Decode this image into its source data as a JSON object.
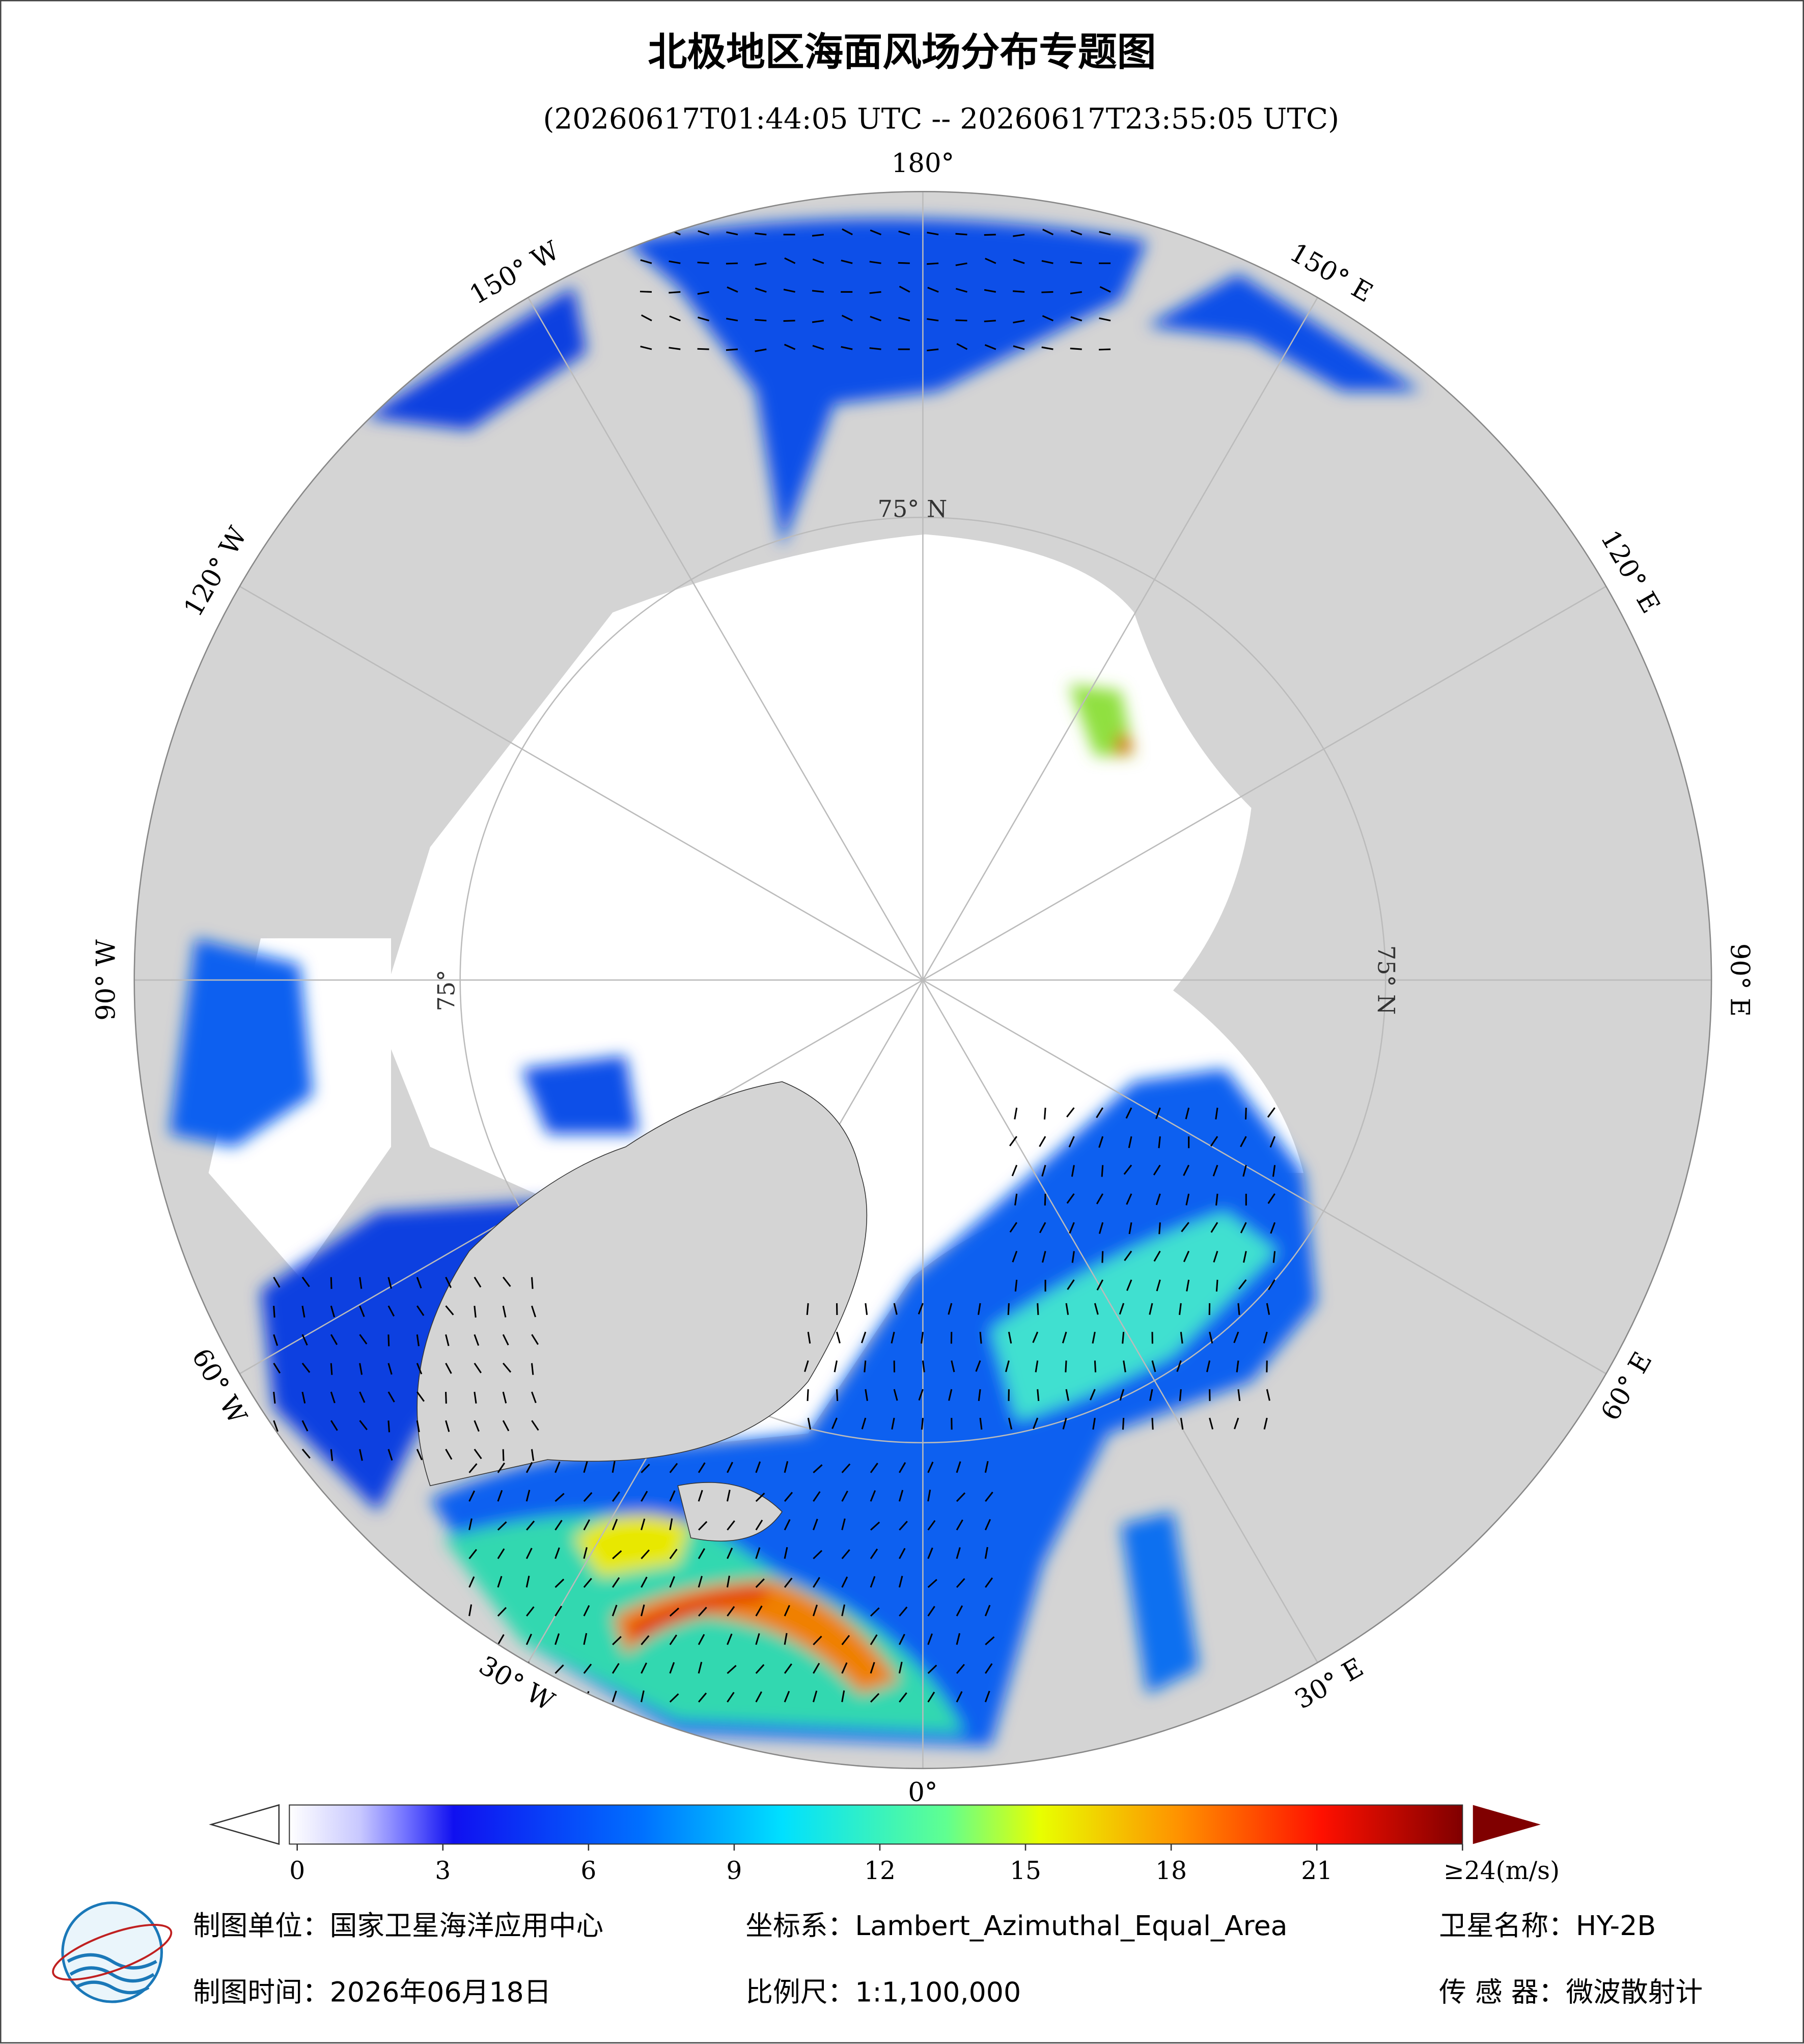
{
  "header": {
    "title": "北极地区海面风场分布专题图",
    "subtitle": "(20260617T01:44:05 UTC -- 20260617T23:55:05 UTC)"
  },
  "map": {
    "lon_labels": [
      "180°",
      "150° E",
      "120° E",
      "90° E",
      "60° E",
      "30° E",
      "0°",
      "30° W",
      "60° W",
      "90° W",
      "120° W",
      "150° W"
    ],
    "lat_labels": [
      "75° N",
      "75° N",
      "75°"
    ]
  },
  "colorbar": {
    "lim": [
      0,
      24
    ],
    "ticks": [
      0,
      3,
      6,
      9,
      12,
      15,
      18,
      21,
      {
        "value": 24,
        "label": "≥24(m/s)"
      }
    ]
  },
  "footer": {
    "unit": "制图单位：国家卫星海洋应用中心",
    "crs": "坐标系：Lambert_Azimuthal_Equal_Area",
    "satellite": "卫星名称：HY-2B",
    "date": "制图时间：2026年06月18日",
    "scale": "比例尺：1:1,100,000",
    "sensor": "传 感 器：微波散射计"
  }
}
